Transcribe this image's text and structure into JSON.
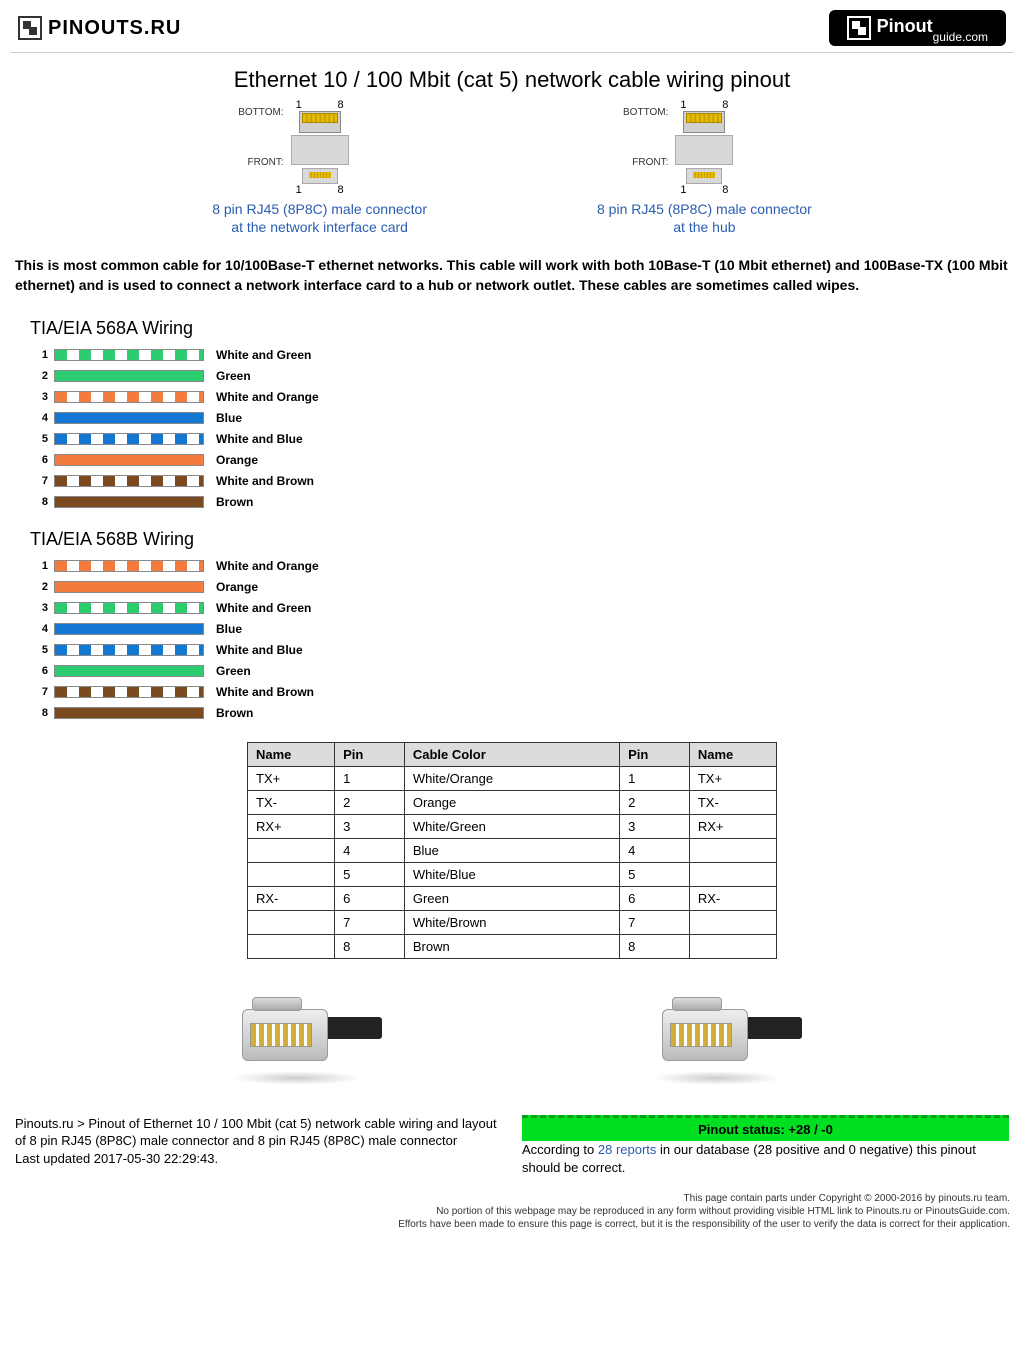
{
  "header": {
    "logo_left": "PINOUTS.RU",
    "logo_right_bold": "Pinout",
    "logo_right_sub": "guide.com"
  },
  "page_title": "Ethernet 10 / 100 Mbit (cat 5) network cable wiring pinout",
  "connectors": {
    "left": {
      "link1": "8 pin RJ45 (8P8C) male connector",
      "link2": "at the network interface card",
      "bottom": "BOTTOM:",
      "front": "FRONT:",
      "one": "1",
      "eight": "8"
    },
    "right": {
      "link1": "8 pin RJ45 (8P8C) male connector",
      "link2": "at the hub",
      "bottom": "BOTTOM:",
      "front": "FRONT:",
      "one": "1",
      "eight": "8"
    }
  },
  "intro": "This is most common cable for 10/100Base-T ethernet networks. This cable will work with both 10Base-T (10 Mbit ethernet) and 100Base-TX (100 Mbit ethernet) and is used to connect a network interface card to a hub or network outlet. These cables are sometimes called wipes.",
  "colors": {
    "green": "#2ecc71",
    "orange": "#f47b3e",
    "blue": "#1477d4",
    "brown": "#7a4a20",
    "white": "#ffffff",
    "border": "#888888"
  },
  "wiring568a": {
    "title": "TIA/EIA 568A Wiring",
    "rows": [
      {
        "n": "1",
        "label": "White and Green",
        "type": "striped",
        "color": "#2ecc71"
      },
      {
        "n": "2",
        "label": "Green",
        "type": "solid",
        "color": "#2ecc71"
      },
      {
        "n": "3",
        "label": "White and Orange",
        "type": "striped",
        "color": "#f47b3e"
      },
      {
        "n": "4",
        "label": "Blue",
        "type": "solid",
        "color": "#1477d4"
      },
      {
        "n": "5",
        "label": "White and Blue",
        "type": "striped",
        "color": "#1477d4"
      },
      {
        "n": "6",
        "label": "Orange",
        "type": "solid",
        "color": "#f47b3e"
      },
      {
        "n": "7",
        "label": "White and Brown",
        "type": "striped",
        "color": "#7a4a20"
      },
      {
        "n": "8",
        "label": "Brown",
        "type": "solid",
        "color": "#7a4a20"
      }
    ]
  },
  "wiring568b": {
    "title": "TIA/EIA 568B Wiring",
    "rows": [
      {
        "n": "1",
        "label": "White and Orange",
        "type": "striped",
        "color": "#f47b3e"
      },
      {
        "n": "2",
        "label": "Orange",
        "type": "solid",
        "color": "#f47b3e"
      },
      {
        "n": "3",
        "label": "White and Green",
        "type": "striped",
        "color": "#2ecc71"
      },
      {
        "n": "4",
        "label": "Blue",
        "type": "solid",
        "color": "#1477d4"
      },
      {
        "n": "5",
        "label": "White and Blue",
        "type": "striped",
        "color": "#1477d4"
      },
      {
        "n": "6",
        "label": "Green",
        "type": "solid",
        "color": "#2ecc71"
      },
      {
        "n": "7",
        "label": "White and Brown",
        "type": "striped",
        "color": "#7a4a20"
      },
      {
        "n": "8",
        "label": "Brown",
        "type": "solid",
        "color": "#7a4a20"
      }
    ]
  },
  "pinout_table": {
    "columns": [
      "Name",
      "Pin",
      "Cable Color",
      "Pin",
      "Name"
    ],
    "rows": [
      [
        "TX+",
        "1",
        "White/Orange",
        "1",
        "TX+"
      ],
      [
        "TX-",
        "2",
        "Orange",
        "2",
        "TX-"
      ],
      [
        "RX+",
        "3",
        "White/Green",
        "3",
        "RX+"
      ],
      [
        "",
        "4",
        "Blue",
        "4",
        ""
      ],
      [
        "",
        "5",
        "White/Blue",
        "5",
        ""
      ],
      [
        "RX-",
        "6",
        "Green",
        "6",
        "RX-"
      ],
      [
        "",
        "7",
        "White/Brown",
        "7",
        ""
      ],
      [
        "",
        "8",
        "Brown",
        "8",
        ""
      ]
    ]
  },
  "footer": {
    "breadcrumb": "Pinouts.ru > Pinout of Ethernet 10 / 100 Mbit (cat 5) network cable wiring and layout of 8 pin RJ45 (8P8C) male connector and 8 pin RJ45 (8P8C) male connector",
    "updated": "Last updated 2017-05-30 22:29:43.",
    "status": "Pinout status: +28 / -0",
    "status_text1": "According to ",
    "status_link": "28 reports",
    "status_text2": " in our database (28 positive and 0 negative) this pinout should be correct."
  },
  "fine": {
    "l1": "This page contain parts under Copyright © 2000-2016 by pinouts.ru team.",
    "l2": "No portion of this webpage may be reproduced in any form without providing visible HTML link to Pinouts.ru or PinoutsGuide.com.",
    "l3": "Efforts have been made to ensure this page is correct, but it is the responsibility of the user to verify the data is correct for their application."
  }
}
